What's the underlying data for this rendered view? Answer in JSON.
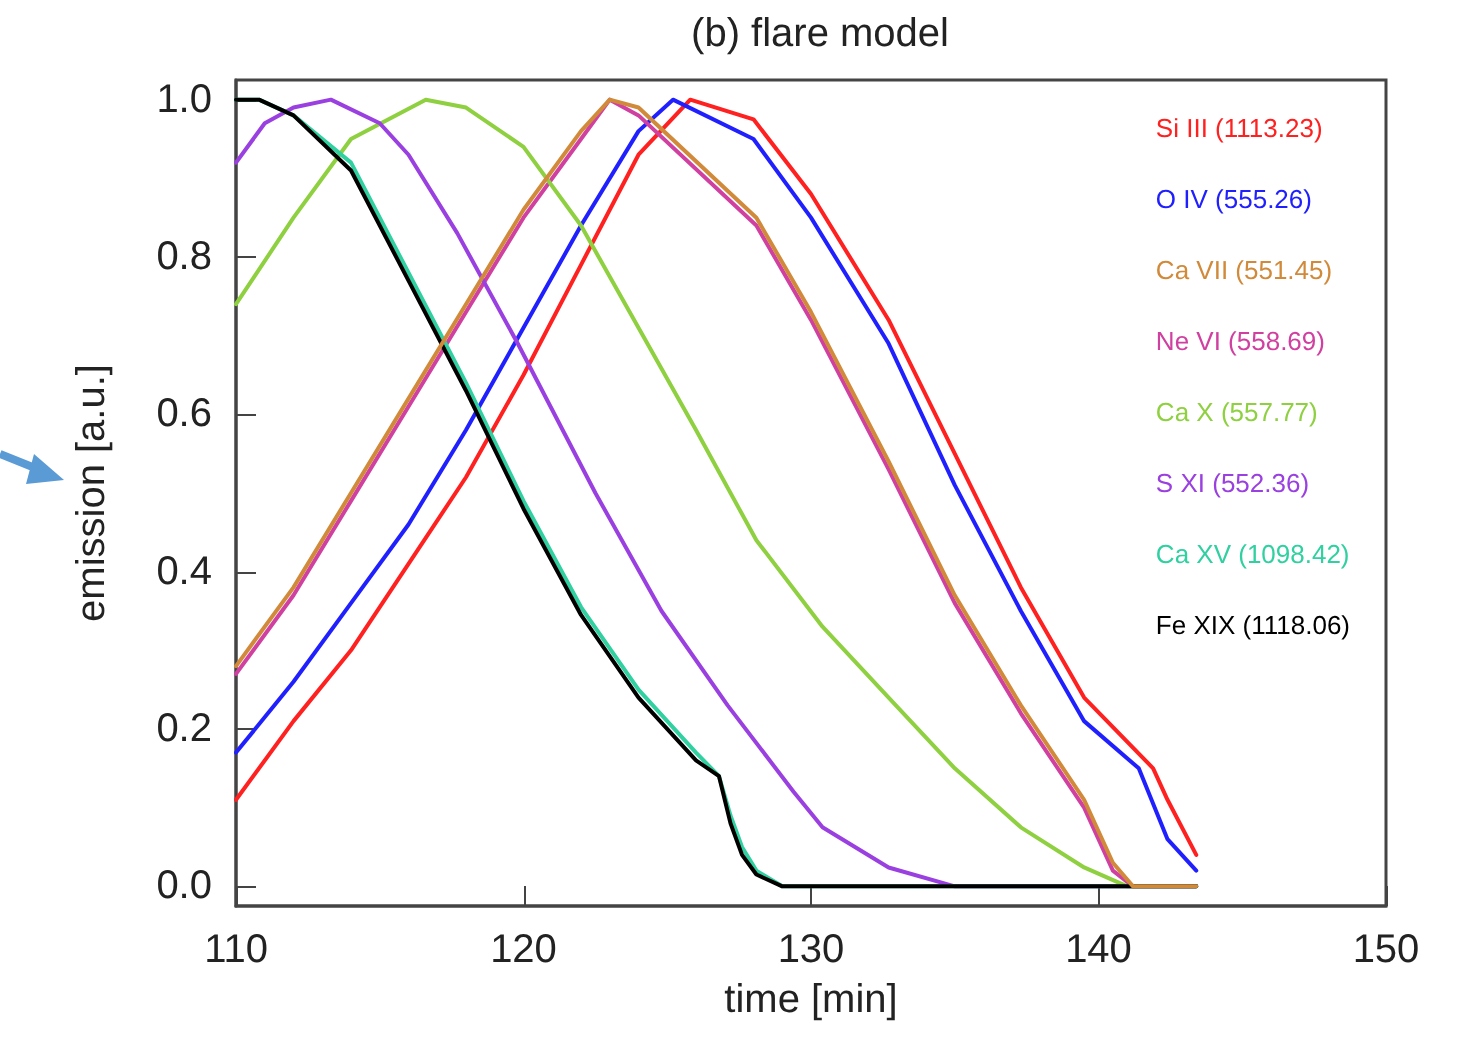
{
  "chart_data": {
    "type": "line",
    "title": "(b) flare model",
    "xlabel": "time [min]",
    "ylabel": "emission [a.u.]",
    "xlim": [
      110,
      150
    ],
    "xticks": [
      110,
      120,
      130,
      140,
      150
    ],
    "ylim": [
      -0.025,
      1.025
    ],
    "yticks": [
      {
        "value": 0,
        "label": "0.0"
      },
      {
        "value": 0.2,
        "label": "0.2"
      },
      {
        "value": 0.4,
        "label": "0.4"
      },
      {
        "value": 0.6,
        "label": "0.6"
      },
      {
        "value": 0.8,
        "label": "0.8"
      },
      {
        "value": 1,
        "label": "1.0"
      }
    ],
    "grid": false,
    "legend": "top right",
    "marker": "none",
    "line_style": "solid",
    "series": [
      {
        "name": "Si III (1113.23)",
        "color": "#ff2020",
        "x": [
          110,
          112,
          114,
          116,
          118,
          120,
          122,
          124,
          125.8,
          128,
          130,
          132.7,
          135,
          137.3,
          139.5,
          141.9,
          142.4,
          143.4
        ],
        "values": [
          0.11,
          0.21,
          0.3,
          0.41,
          0.52,
          0.65,
          0.79,
          0.93,
          1.0,
          0.975,
          0.88,
          0.72,
          0.55,
          0.38,
          0.24,
          0.15,
          0.11,
          0.04
        ]
      },
      {
        "name": "O IV (555.26)",
        "color": "#2020ff",
        "x": [
          110,
          112,
          114,
          116,
          118,
          120,
          122,
          124,
          125.2,
          128,
          130,
          132.7,
          135,
          137.3,
          139.5,
          141.4,
          142.4,
          143.4
        ],
        "values": [
          0.17,
          0.26,
          0.36,
          0.46,
          0.58,
          0.71,
          0.84,
          0.96,
          1.0,
          0.95,
          0.85,
          0.69,
          0.51,
          0.35,
          0.21,
          0.15,
          0.06,
          0.02
        ]
      },
      {
        "name": "Ca VII (551.45)",
        "color": "#d08a3a",
        "x": [
          110,
          112,
          114,
          116,
          118,
          120,
          122,
          123,
          124,
          128.1,
          130,
          132.7,
          135,
          137.3,
          139.5,
          140.5,
          141.2,
          143.4
        ],
        "values": [
          0.28,
          0.38,
          0.5,
          0.62,
          0.74,
          0.86,
          0.96,
          1.0,
          0.99,
          0.85,
          0.73,
          0.54,
          0.37,
          0.23,
          0.11,
          0.03,
          0,
          0
        ]
      },
      {
        "name": "Ne VI (558.69)",
        "color": "#d040a0",
        "x": [
          110,
          112,
          114,
          116,
          118,
          120,
          122,
          123,
          124,
          128.1,
          130,
          132.7,
          135,
          137.3,
          139.5,
          140.5,
          141.2,
          143.4
        ],
        "values": [
          0.27,
          0.37,
          0.49,
          0.61,
          0.73,
          0.85,
          0.95,
          1.0,
          0.98,
          0.84,
          0.72,
          0.53,
          0.36,
          0.22,
          0.1,
          0.02,
          0,
          0
        ]
      },
      {
        "name": "Ca X (557.77)",
        "color": "#8ed040",
        "x": [
          110,
          112,
          114,
          116.6,
          118,
          120,
          122,
          124,
          126,
          128.1,
          130.4,
          132.7,
          135,
          137.3,
          139.5,
          141,
          143.4
        ],
        "values": [
          0.74,
          0.85,
          0.95,
          1.0,
          0.99,
          0.94,
          0.84,
          0.71,
          0.58,
          0.44,
          0.33,
          0.24,
          0.15,
          0.075,
          0.024,
          0,
          0
        ]
      },
      {
        "name": "S XI (552.36)",
        "color": "#9a40e0",
        "x": [
          110,
          111,
          112,
          113.3,
          115,
          116,
          117.7,
          119.8,
          122.5,
          124.8,
          127.1,
          129.4,
          130.4,
          132.7,
          135,
          143.4
        ],
        "values": [
          0.92,
          0.97,
          0.99,
          1.0,
          0.97,
          0.93,
          0.83,
          0.69,
          0.5,
          0.35,
          0.23,
          0.12,
          0.075,
          0.024,
          0,
          0
        ]
      },
      {
        "name": "Ca XV (1098.42)",
        "color": "#30d0a0",
        "x": [
          110,
          110.8,
          112,
          114,
          116,
          118,
          120,
          122,
          124,
          126,
          126.8,
          127.2,
          127.6,
          128.1,
          129,
          143.4
        ],
        "values": [
          1.0,
          1.0,
          0.98,
          0.92,
          0.78,
          0.64,
          0.49,
          0.355,
          0.25,
          0.17,
          0.14,
          0.09,
          0.05,
          0.02,
          0,
          0
        ]
      },
      {
        "name": "Fe XIX (1118.06)",
        "color": "#000000",
        "x": [
          110,
          110.8,
          112,
          114,
          116,
          118,
          120,
          122,
          124,
          126,
          126.8,
          127.2,
          127.6,
          128.1,
          129,
          143.4
        ],
        "values": [
          1.0,
          1.0,
          0.98,
          0.91,
          0.77,
          0.63,
          0.48,
          0.345,
          0.24,
          0.16,
          0.14,
          0.08,
          0.04,
          0.015,
          0,
          0
        ]
      }
    ]
  }
}
